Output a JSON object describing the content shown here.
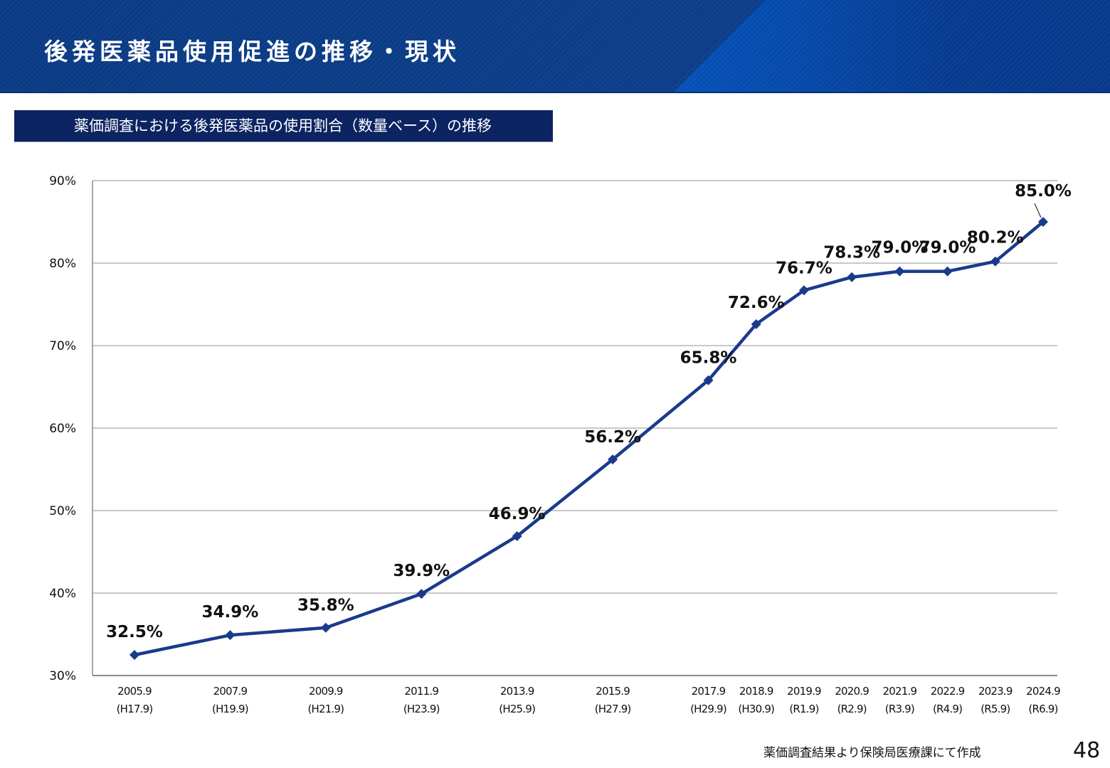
{
  "header": {
    "title": "後発医薬品使用促進の推移・現状"
  },
  "subtitle": "薬価調査における後発医薬品の使用割合（数量ベース）の推移",
  "footer": {
    "source": "薬価調査結果より保険局医療課にて作成",
    "page_number": "48"
  },
  "colors": {
    "header_bg": "#0b3d88",
    "header_accent": "#0550b8",
    "subtitle_bg": "#0c2462",
    "series_line": "#1a3a8c",
    "gridline": "#a6a6a6"
  },
  "chart_data": {
    "type": "line",
    "title": "薬価調査における後発医薬品の使用割合（数量ベース）の推移",
    "xlabel": "",
    "ylabel": "",
    "ylim": [
      30,
      90
    ],
    "yticks": [
      30,
      40,
      50,
      60,
      70,
      80,
      90
    ],
    "ytick_labels": [
      "30%",
      "40%",
      "50%",
      "60%",
      "70%",
      "80%",
      "90%"
    ],
    "grid": true,
    "legend": "none",
    "x": [
      2005.75,
      2007.75,
      2009.75,
      2011.75,
      2013.75,
      2015.75,
      2017.75,
      2018.75,
      2019.75,
      2020.75,
      2021.75,
      2022.75,
      2023.75,
      2024.75
    ],
    "categories": [
      {
        "year": "2005.9",
        "era": "(H17.9)"
      },
      {
        "year": "2007.9",
        "era": "(H19.9)"
      },
      {
        "year": "2009.9",
        "era": "(H21.9)"
      },
      {
        "year": "2011.9",
        "era": "(H23.9)"
      },
      {
        "year": "2013.9",
        "era": "(H25.9)"
      },
      {
        "year": "2015.9",
        "era": "(H27.9)"
      },
      {
        "year": "2017.9",
        "era": "(H29.9)"
      },
      {
        "year": "2018.9",
        "era": "(H30.9)"
      },
      {
        "year": "2019.9",
        "era": "(R1.9)"
      },
      {
        "year": "2020.9",
        "era": "(R2.9)"
      },
      {
        "year": "2021.9",
        "era": "(R3.9)"
      },
      {
        "year": "2022.9",
        "era": "(R4.9)"
      },
      {
        "year": "2023.9",
        "era": "(R5.9)"
      },
      {
        "year": "2024.9",
        "era": "(R6.9)"
      }
    ],
    "series": [
      {
        "name": "後発医薬品の使用割合（数量ベース）",
        "values": [
          32.5,
          34.9,
          35.8,
          39.9,
          46.9,
          56.2,
          65.8,
          72.6,
          76.7,
          78.3,
          79.0,
          79.0,
          80.2,
          85.0
        ],
        "labels": [
          "32.5%",
          "34.9%",
          "35.8%",
          "39.9%",
          "46.9%",
          "56.2%",
          "65.8%",
          "72.6%",
          "76.7%",
          "78.3%",
          "79.0%",
          "79.0%",
          "80.2%",
          "85.0%"
        ],
        "marker": "diamond"
      }
    ]
  }
}
